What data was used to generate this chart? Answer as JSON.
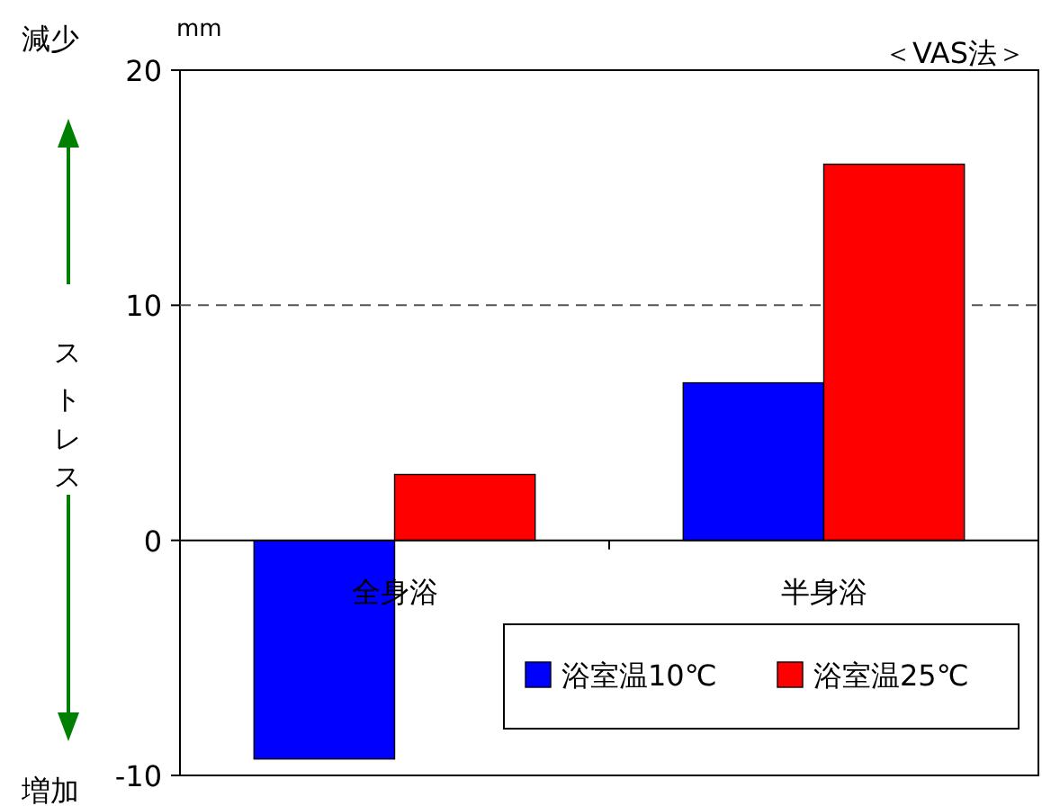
{
  "chart_data": {
    "type": "bar",
    "categories": [
      "全身浴",
      "半身浴"
    ],
    "series": [
      {
        "name": "浴室温10℃",
        "color": "#0000ff",
        "values": [
          -9.3,
          6.7
        ]
      },
      {
        "name": "浴室温25℃",
        "color": "#ff0000",
        "values": [
          2.8,
          16.0
        ]
      }
    ],
    "ylim": [
      -10,
      20
    ],
    "yticks": [
      -10,
      0,
      10,
      20
    ],
    "ylabel": "ストレス",
    "grid": false,
    "legend": "bottom right",
    "ref_lines": [
      {
        "axis": "y",
        "value": 10,
        "line_style": "dashed",
        "color": "#555555"
      }
    ],
    "annotations": [
      "mm",
      "＜VAS法＞",
      "減少",
      "増加"
    ]
  }
}
